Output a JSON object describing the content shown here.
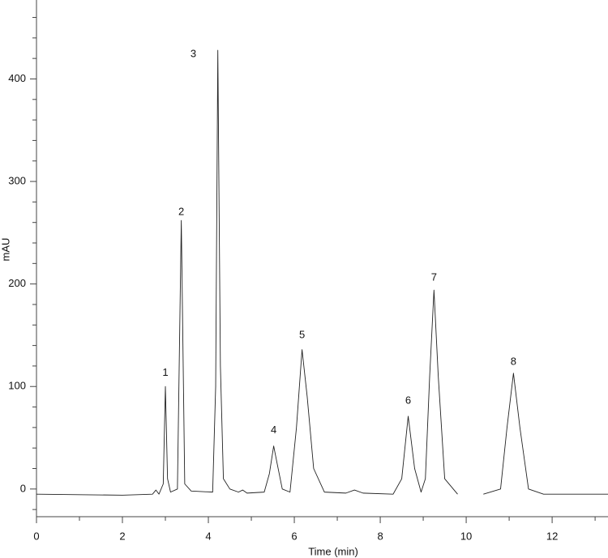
{
  "chart_data": {
    "type": "line",
    "x_label": "Time (min)",
    "y_label": "mAU",
    "x": [
      0,
      2,
      2.7,
      2.78,
      2.85,
      2.95,
      3.0,
      3.05,
      3.12,
      3.28,
      3.37,
      3.45,
      3.6,
      4.1,
      4.17,
      4.22,
      4.28,
      4.35,
      4.5,
      4.7,
      4.8,
      4.9,
      5.3,
      5.42,
      5.52,
      5.6,
      5.72,
      5.9,
      6.05,
      6.18,
      6.3,
      6.45,
      6.7,
      7.2,
      7.4,
      7.6,
      8.3,
      8.5,
      8.65,
      8.8,
      8.95,
      9.05,
      9.15,
      9.25,
      9.35,
      9.5,
      9.8,
      10.0,
      10.4,
      10.8,
      10.95,
      11.1,
      11.25,
      11.45,
      11.8,
      13.3
    ],
    "series": [
      {
        "color": "#222222",
        "values": [
          -5,
          -6,
          -5,
          -1,
          -5,
          5,
          100,
          10,
          -3,
          0,
          262,
          5,
          -2,
          -3,
          100,
          428,
          120,
          10,
          0,
          -3,
          -1,
          -4,
          -3,
          15,
          42,
          25,
          0,
          -3,
          60,
          136,
          90,
          20,
          -3,
          -4,
          -1,
          -4,
          -5,
          10,
          71,
          20,
          -3,
          10,
          110,
          194,
          110,
          10,
          -5,
          null,
          -5,
          0,
          60,
          113,
          60,
          0,
          -5,
          -5
        ]
      }
    ],
    "annotations": [
      {
        "text": "1",
        "x": 3.0,
        "y": 113
      },
      {
        "text": "2",
        "x": 3.37,
        "y": 270
      },
      {
        "text": "3",
        "x": 3.65,
        "y": 424
      },
      {
        "text": "4",
        "x": 5.52,
        "y": 57
      },
      {
        "text": "5",
        "x": 6.18,
        "y": 150
      },
      {
        "text": "6",
        "x": 8.65,
        "y": 86
      },
      {
        "text": "7",
        "x": 9.25,
        "y": 206
      },
      {
        "text": "8",
        "x": 11.1,
        "y": 124
      }
    ],
    "xlim": [
      0,
      13.3
    ],
    "ylim": [
      -27,
      477
    ],
    "xticks": [
      0,
      2,
      4,
      6,
      8,
      10,
      12
    ],
    "xminorticks": [
      1,
      3,
      5,
      7,
      9,
      11,
      13
    ],
    "yticks": [
      0,
      100,
      200,
      300,
      400
    ],
    "yminorticks": [
      -20,
      20,
      40,
      60,
      80,
      120,
      140,
      160,
      180,
      220,
      240,
      260,
      280,
      320,
      340,
      360,
      380,
      420,
      440,
      460
    ]
  }
}
